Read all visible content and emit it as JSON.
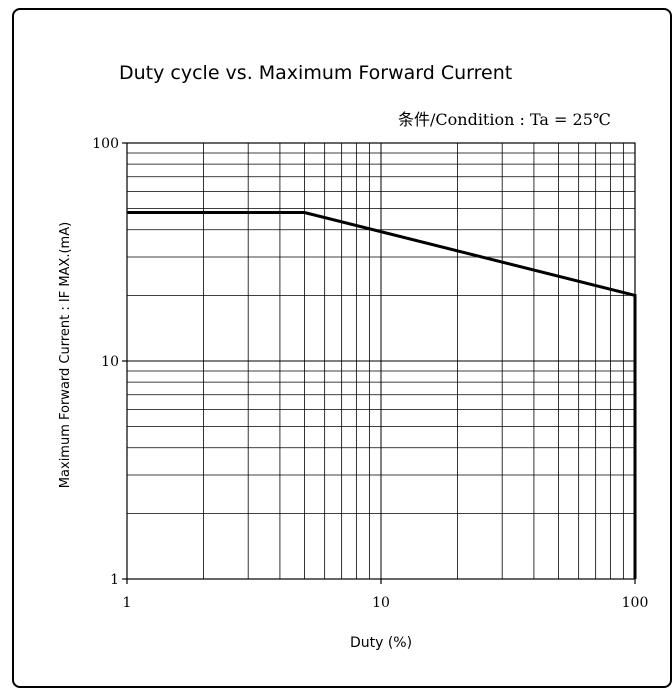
{
  "chart_data": {
    "type": "line",
    "title": "Duty cycle vs. Maximum Forward Current",
    "condition": "条件/Condition : Ta = 25℃",
    "xlabel": "Duty (%)",
    "ylabel": "Maximum Forward Current : IF MAX.(mA)",
    "x_scale": "log",
    "y_scale": "log",
    "xlim": [
      1,
      100
    ],
    "ylim": [
      1,
      100
    ],
    "x_ticks": [
      1,
      10,
      100
    ],
    "x_tick_labels": [
      "1",
      "10",
      "100"
    ],
    "y_ticks": [
      1,
      10,
      100
    ],
    "y_tick_labels": [
      "1",
      "10",
      "100"
    ],
    "grid": true,
    "series": [
      {
        "x": [
          1,
          5,
          100,
          100
        ],
        "y": [
          48,
          48,
          20,
          1
        ]
      }
    ]
  }
}
